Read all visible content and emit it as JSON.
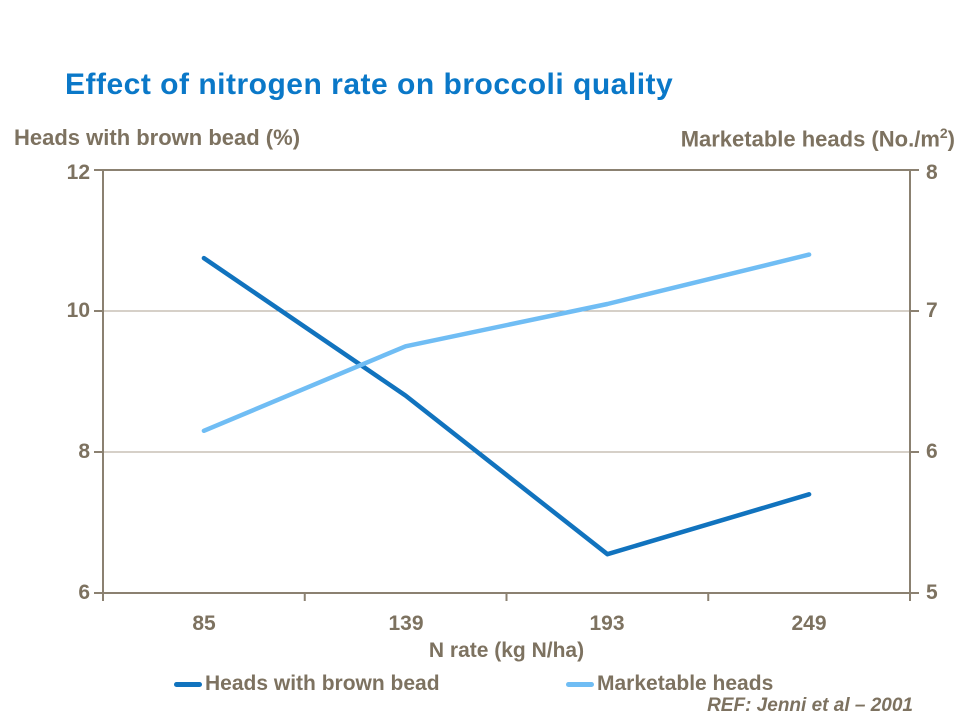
{
  "title": "Effect of nitrogen rate on broccoli quality",
  "left_axis_header": "Heads with brown bead (%)",
  "right_axis_header": {
    "main": "Marketable heads (No./m",
    "sup": "2",
    "close": ")"
  },
  "chart_data": {
    "type": "line",
    "categories": [
      "85",
      "139",
      "193",
      "249"
    ],
    "xlabel": "N rate (kg N/ha)",
    "left_axis": {
      "label": "Heads with brown bead (%)",
      "ticks": [
        "12",
        "10",
        "8",
        "6"
      ],
      "range": [
        6,
        12
      ]
    },
    "right_axis": {
      "label": "Marketable heads (No./m2)",
      "ticks": [
        "8",
        "7",
        "6",
        "5"
      ],
      "range": [
        5,
        8
      ]
    },
    "series": [
      {
        "name": "Heads with brown bead",
        "axis": "left",
        "color": "#1173be",
        "values": [
          10.75,
          8.8,
          6.55,
          7.4
        ]
      },
      {
        "name": "Marketable heads",
        "axis": "right",
        "color": "#70bdf4",
        "values": [
          6.15,
          6.75,
          7.05,
          7.4
        ]
      }
    ],
    "grid": "horizontal",
    "legend_position": "bottom"
  },
  "legend": {
    "items": [
      {
        "label": "Heads with brown bead",
        "color": "#1173be"
      },
      {
        "label": "Marketable heads",
        "color": "#70bdf4"
      }
    ]
  },
  "reference": "REF: Jenni et al – 2001",
  "colors": {
    "title": "#0a78c8",
    "text": "#7d7260",
    "axis": "#8b8171",
    "gridline": "#aca291",
    "background": "#ffffff"
  }
}
